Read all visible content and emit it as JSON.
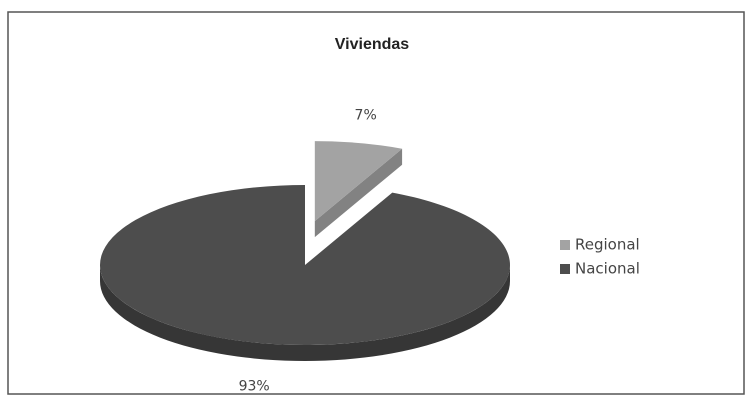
{
  "chart_data": {
    "type": "pie",
    "title": "Viviendas",
    "categories": [
      "Regional",
      "Nacional"
    ],
    "values": [
      7,
      93
    ],
    "value_labels": [
      "7%",
      "93%"
    ],
    "colors": [
      "#a3a3a3",
      "#4d4d4d"
    ],
    "legend": "right"
  }
}
